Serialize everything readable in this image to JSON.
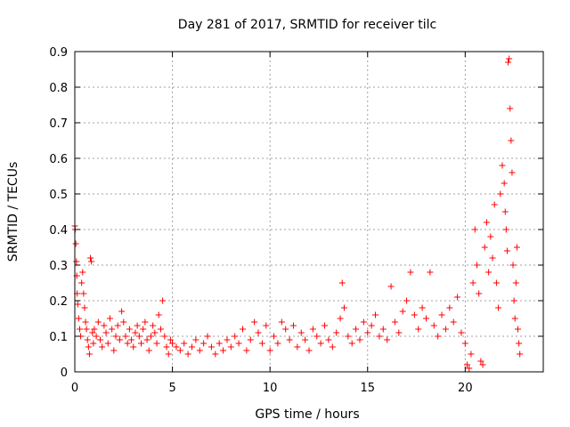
{
  "chart_data": {
    "type": "scatter",
    "title": "Day 281 of 2017, SRMTID for receiver tilc",
    "xlabel": "GPS time / hours",
    "ylabel": "SRMTID / TECUs",
    "xlim": [
      0,
      24
    ],
    "ylim": [
      0,
      0.9
    ],
    "xticks": [
      0,
      5,
      10,
      15,
      20
    ],
    "yticks": [
      0,
      0.1,
      0.2,
      0.3,
      0.4,
      0.5,
      0.6,
      0.7,
      0.8,
      0.9
    ],
    "xtick_labels": [
      "0",
      "5",
      "10",
      "15",
      "20"
    ],
    "ytick_labels": [
      "0",
      "0.1",
      "0.2",
      "0.3",
      "0.4",
      "0.5",
      "0.6",
      "0.7",
      "0.8",
      "0.9"
    ],
    "grid": true,
    "marker": "+",
    "color": "#ff0000",
    "series": [
      {
        "name": "SRMTID",
        "points": [
          [
            0.0,
            0.41
          ],
          [
            0.02,
            0.4
          ],
          [
            0.05,
            0.36
          ],
          [
            0.08,
            0.31
          ],
          [
            0.1,
            0.27
          ],
          [
            0.12,
            0.22
          ],
          [
            0.15,
            0.19
          ],
          [
            0.2,
            0.15
          ],
          [
            0.25,
            0.12
          ],
          [
            0.3,
            0.1
          ],
          [
            0.35,
            0.25
          ],
          [
            0.4,
            0.28
          ],
          [
            0.45,
            0.22
          ],
          [
            0.5,
            0.18
          ],
          [
            0.55,
            0.14
          ],
          [
            0.6,
            0.12
          ],
          [
            0.65,
            0.09
          ],
          [
            0.7,
            0.07
          ],
          [
            0.75,
            0.05
          ],
          [
            0.8,
            0.32
          ],
          [
            0.85,
            0.31
          ],
          [
            0.9,
            0.11
          ],
          [
            0.95,
            0.08
          ],
          [
            1.0,
            0.12
          ],
          [
            1.1,
            0.1
          ],
          [
            1.2,
            0.14
          ],
          [
            1.3,
            0.09
          ],
          [
            1.4,
            0.07
          ],
          [
            1.5,
            0.13
          ],
          [
            1.6,
            0.11
          ],
          [
            1.7,
            0.08
          ],
          [
            1.8,
            0.15
          ],
          [
            1.9,
            0.12
          ],
          [
            2.0,
            0.06
          ],
          [
            2.1,
            0.1
          ],
          [
            2.2,
            0.13
          ],
          [
            2.3,
            0.09
          ],
          [
            2.4,
            0.17
          ],
          [
            2.5,
            0.14
          ],
          [
            2.6,
            0.1
          ],
          [
            2.7,
            0.08
          ],
          [
            2.8,
            0.12
          ],
          [
            2.9,
            0.09
          ],
          [
            3.0,
            0.07
          ],
          [
            3.1,
            0.11
          ],
          [
            3.2,
            0.13
          ],
          [
            3.3,
            0.1
          ],
          [
            3.4,
            0.08
          ],
          [
            3.5,
            0.12
          ],
          [
            3.6,
            0.14
          ],
          [
            3.7,
            0.09
          ],
          [
            3.8,
            0.06
          ],
          [
            3.9,
            0.1
          ],
          [
            4.0,
            0.13
          ],
          [
            4.1,
            0.11
          ],
          [
            4.2,
            0.08
          ],
          [
            4.3,
            0.16
          ],
          [
            4.4,
            0.12
          ],
          [
            4.5,
            0.2
          ],
          [
            4.6,
            0.1
          ],
          [
            4.7,
            0.07
          ],
          [
            4.8,
            0.05
          ],
          [
            4.9,
            0.09
          ],
          [
            5.0,
            0.08
          ],
          [
            5.2,
            0.07
          ],
          [
            5.4,
            0.06
          ],
          [
            5.6,
            0.08
          ],
          [
            5.8,
            0.05
          ],
          [
            6.0,
            0.07
          ],
          [
            6.2,
            0.09
          ],
          [
            6.4,
            0.06
          ],
          [
            6.6,
            0.08
          ],
          [
            6.8,
            0.1
          ],
          [
            7.0,
            0.07
          ],
          [
            7.2,
            0.05
          ],
          [
            7.4,
            0.08
          ],
          [
            7.6,
            0.06
          ],
          [
            7.8,
            0.09
          ],
          [
            8.0,
            0.07
          ],
          [
            8.2,
            0.1
          ],
          [
            8.4,
            0.08
          ],
          [
            8.6,
            0.12
          ],
          [
            8.8,
            0.06
          ],
          [
            9.0,
            0.09
          ],
          [
            9.2,
            0.14
          ],
          [
            9.4,
            0.11
          ],
          [
            9.6,
            0.08
          ],
          [
            9.8,
            0.13
          ],
          [
            10.0,
            0.06
          ],
          [
            10.2,
            0.1
          ],
          [
            10.4,
            0.08
          ],
          [
            10.6,
            0.14
          ],
          [
            10.8,
            0.12
          ],
          [
            11.0,
            0.09
          ],
          [
            11.2,
            0.13
          ],
          [
            11.4,
            0.07
          ],
          [
            11.6,
            0.11
          ],
          [
            11.8,
            0.09
          ],
          [
            12.0,
            0.06
          ],
          [
            12.2,
            0.12
          ],
          [
            12.4,
            0.1
          ],
          [
            12.6,
            0.08
          ],
          [
            12.8,
            0.13
          ],
          [
            13.0,
            0.09
          ],
          [
            13.2,
            0.07
          ],
          [
            13.4,
            0.11
          ],
          [
            13.6,
            0.15
          ],
          [
            13.7,
            0.25
          ],
          [
            13.8,
            0.18
          ],
          [
            14.0,
            0.1
          ],
          [
            14.2,
            0.08
          ],
          [
            14.4,
            0.12
          ],
          [
            14.6,
            0.09
          ],
          [
            14.8,
            0.14
          ],
          [
            15.0,
            0.11
          ],
          [
            15.2,
            0.13
          ],
          [
            15.4,
            0.16
          ],
          [
            15.6,
            0.1
          ],
          [
            15.8,
            0.12
          ],
          [
            16.0,
            0.09
          ],
          [
            16.2,
            0.24
          ],
          [
            16.4,
            0.14
          ],
          [
            16.6,
            0.11
          ],
          [
            16.8,
            0.17
          ],
          [
            17.0,
            0.2
          ],
          [
            17.2,
            0.28
          ],
          [
            17.4,
            0.16
          ],
          [
            17.6,
            0.12
          ],
          [
            17.8,
            0.18
          ],
          [
            18.0,
            0.15
          ],
          [
            18.2,
            0.28
          ],
          [
            18.4,
            0.13
          ],
          [
            18.6,
            0.1
          ],
          [
            18.8,
            0.16
          ],
          [
            19.0,
            0.12
          ],
          [
            19.2,
            0.18
          ],
          [
            19.4,
            0.14
          ],
          [
            19.6,
            0.21
          ],
          [
            19.8,
            0.11
          ],
          [
            20.0,
            0.08
          ],
          [
            20.1,
            0.02
          ],
          [
            20.2,
            0.01
          ],
          [
            20.3,
            0.05
          ],
          [
            20.4,
            0.25
          ],
          [
            20.5,
            0.4
          ],
          [
            20.6,
            0.3
          ],
          [
            20.7,
            0.22
          ],
          [
            20.8,
            0.03
          ],
          [
            20.9,
            0.02
          ],
          [
            21.0,
            0.35
          ],
          [
            21.1,
            0.42
          ],
          [
            21.2,
            0.28
          ],
          [
            21.3,
            0.38
          ],
          [
            21.4,
            0.32
          ],
          [
            21.5,
            0.47
          ],
          [
            21.6,
            0.25
          ],
          [
            21.7,
            0.18
          ],
          [
            21.8,
            0.5
          ],
          [
            21.9,
            0.58
          ],
          [
            22.0,
            0.53
          ],
          [
            22.05,
            0.45
          ],
          [
            22.1,
            0.4
          ],
          [
            22.15,
            0.34
          ],
          [
            22.2,
            0.87
          ],
          [
            22.25,
            0.88
          ],
          [
            22.3,
            0.74
          ],
          [
            22.35,
            0.65
          ],
          [
            22.4,
            0.56
          ],
          [
            22.45,
            0.3
          ],
          [
            22.5,
            0.2
          ],
          [
            22.55,
            0.15
          ],
          [
            22.6,
            0.25
          ],
          [
            22.65,
            0.35
          ],
          [
            22.7,
            0.12
          ],
          [
            22.75,
            0.08
          ],
          [
            22.8,
            0.05
          ]
        ]
      }
    ]
  }
}
